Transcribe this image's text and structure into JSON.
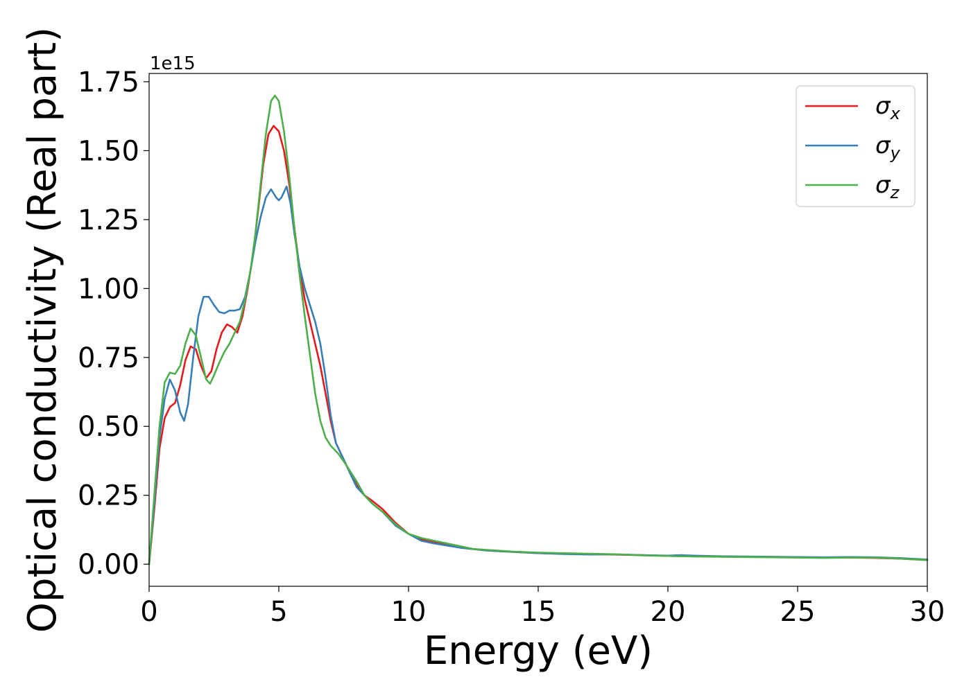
{
  "chart_data": {
    "type": "line",
    "title": "",
    "xlabel": "Energy (eV)",
    "ylabel": "Optical conductivity (Real part)",
    "y_offset_label": "1e15",
    "xlim": [
      0,
      30
    ],
    "ylim": [
      -0.08,
      1.78
    ],
    "xticks": [
      0,
      5,
      10,
      15,
      20,
      25,
      30
    ],
    "xtick_labels": [
      "0",
      "5",
      "10",
      "15",
      "20",
      "25",
      "30"
    ],
    "yticks": [
      0.0,
      0.25,
      0.5,
      0.75,
      1.0,
      1.25,
      1.5,
      1.75
    ],
    "ytick_labels": [
      "0.00",
      "0.25",
      "0.50",
      "0.75",
      "1.00",
      "1.25",
      "1.50",
      "1.75"
    ],
    "grid": false,
    "legend_position": "top-right",
    "series": [
      {
        "name": "σx",
        "symbol": "σ",
        "subscript": "x",
        "color": "#e41a1c",
        "points": [
          [
            0,
            0.0
          ],
          [
            0.2,
            0.2
          ],
          [
            0.4,
            0.42
          ],
          [
            0.6,
            0.53
          ],
          [
            0.8,
            0.57
          ],
          [
            1.0,
            0.585
          ],
          [
            1.2,
            0.65
          ],
          [
            1.4,
            0.74
          ],
          [
            1.6,
            0.79
          ],
          [
            1.8,
            0.78
          ],
          [
            2.0,
            0.72
          ],
          [
            2.2,
            0.675
          ],
          [
            2.4,
            0.7
          ],
          [
            2.6,
            0.78
          ],
          [
            2.8,
            0.84
          ],
          [
            3.0,
            0.87
          ],
          [
            3.2,
            0.86
          ],
          [
            3.4,
            0.84
          ],
          [
            3.6,
            0.9
          ],
          [
            3.8,
            1.0
          ],
          [
            4.0,
            1.12
          ],
          [
            4.2,
            1.28
          ],
          [
            4.4,
            1.45
          ],
          [
            4.6,
            1.56
          ],
          [
            4.8,
            1.59
          ],
          [
            5.0,
            1.57
          ],
          [
            5.2,
            1.5
          ],
          [
            5.4,
            1.38
          ],
          [
            5.6,
            1.22
          ],
          [
            5.8,
            1.07
          ],
          [
            6.0,
            0.96
          ],
          [
            6.2,
            0.88
          ],
          [
            6.4,
            0.8
          ],
          [
            6.6,
            0.72
          ],
          [
            6.8,
            0.62
          ],
          [
            7.0,
            0.52
          ],
          [
            7.2,
            0.44
          ],
          [
            7.5,
            0.38
          ],
          [
            7.8,
            0.32
          ],
          [
            8.0,
            0.29
          ],
          [
            8.3,
            0.25
          ],
          [
            8.6,
            0.23
          ],
          [
            9.0,
            0.2
          ],
          [
            9.5,
            0.15
          ],
          [
            10.0,
            0.11
          ],
          [
            10.5,
            0.09
          ],
          [
            11.0,
            0.08
          ],
          [
            12.0,
            0.06
          ],
          [
            13.0,
            0.05
          ],
          [
            14.0,
            0.045
          ],
          [
            15.0,
            0.04
          ],
          [
            16.0,
            0.038
          ],
          [
            17.0,
            0.036
          ],
          [
            18.0,
            0.035
          ],
          [
            19.0,
            0.033
          ],
          [
            20.0,
            0.03
          ],
          [
            21.0,
            0.029
          ],
          [
            22.0,
            0.028
          ],
          [
            23.0,
            0.027
          ],
          [
            24.0,
            0.026
          ],
          [
            25.0,
            0.025
          ],
          [
            26.0,
            0.024
          ],
          [
            27.0,
            0.024
          ],
          [
            28.0,
            0.023
          ],
          [
            29.0,
            0.02
          ],
          [
            30.0,
            0.015
          ]
        ]
      },
      {
        "name": "σy",
        "symbol": "σ",
        "subscript": "y",
        "color": "#377eb8",
        "points": [
          [
            0,
            0.0
          ],
          [
            0.2,
            0.22
          ],
          [
            0.4,
            0.46
          ],
          [
            0.6,
            0.6
          ],
          [
            0.8,
            0.67
          ],
          [
            1.0,
            0.63
          ],
          [
            1.2,
            0.55
          ],
          [
            1.35,
            0.52
          ],
          [
            1.5,
            0.58
          ],
          [
            1.7,
            0.75
          ],
          [
            1.9,
            0.9
          ],
          [
            2.1,
            0.97
          ],
          [
            2.3,
            0.97
          ],
          [
            2.5,
            0.94
          ],
          [
            2.7,
            0.915
          ],
          [
            2.9,
            0.91
          ],
          [
            3.1,
            0.92
          ],
          [
            3.3,
            0.92
          ],
          [
            3.5,
            0.925
          ],
          [
            3.7,
            0.97
          ],
          [
            3.9,
            1.06
          ],
          [
            4.1,
            1.17
          ],
          [
            4.3,
            1.26
          ],
          [
            4.5,
            1.33
          ],
          [
            4.7,
            1.36
          ],
          [
            4.9,
            1.33
          ],
          [
            5.0,
            1.32
          ],
          [
            5.1,
            1.33
          ],
          [
            5.3,
            1.37
          ],
          [
            5.45,
            1.31
          ],
          [
            5.6,
            1.2
          ],
          [
            5.8,
            1.08
          ],
          [
            6.0,
            1.0
          ],
          [
            6.2,
            0.94
          ],
          [
            6.4,
            0.88
          ],
          [
            6.6,
            0.8
          ],
          [
            6.8,
            0.68
          ],
          [
            7.0,
            0.54
          ],
          [
            7.2,
            0.44
          ],
          [
            7.5,
            0.38
          ],
          [
            7.8,
            0.32
          ],
          [
            8.0,
            0.28
          ],
          [
            8.3,
            0.25
          ],
          [
            8.6,
            0.22
          ],
          [
            9.0,
            0.19
          ],
          [
            9.5,
            0.14
          ],
          [
            10.0,
            0.11
          ],
          [
            10.5,
            0.085
          ],
          [
            11.0,
            0.075
          ],
          [
            12.0,
            0.06
          ],
          [
            13.0,
            0.05
          ],
          [
            14.0,
            0.045
          ],
          [
            15.0,
            0.04
          ],
          [
            16.0,
            0.037
          ],
          [
            17.0,
            0.035
          ],
          [
            18.0,
            0.036
          ],
          [
            19.0,
            0.033
          ],
          [
            20.0,
            0.031
          ],
          [
            20.5,
            0.033
          ],
          [
            21.0,
            0.031
          ],
          [
            22.0,
            0.029
          ],
          [
            23.0,
            0.028
          ],
          [
            24.0,
            0.027
          ],
          [
            25.0,
            0.026
          ],
          [
            26.0,
            0.025
          ],
          [
            27.0,
            0.026
          ],
          [
            28.0,
            0.025
          ],
          [
            29.0,
            0.022
          ],
          [
            30.0,
            0.017
          ]
        ]
      },
      {
        "name": "σz",
        "symbol": "σ",
        "subscript": "z",
        "color": "#4daf4a",
        "points": [
          [
            0,
            0.0
          ],
          [
            0.2,
            0.25
          ],
          [
            0.4,
            0.5
          ],
          [
            0.6,
            0.66
          ],
          [
            0.8,
            0.695
          ],
          [
            1.0,
            0.69
          ],
          [
            1.2,
            0.72
          ],
          [
            1.4,
            0.8
          ],
          [
            1.6,
            0.855
          ],
          [
            1.8,
            0.83
          ],
          [
            2.0,
            0.75
          ],
          [
            2.2,
            0.67
          ],
          [
            2.35,
            0.655
          ],
          [
            2.5,
            0.685
          ],
          [
            2.7,
            0.73
          ],
          [
            2.9,
            0.77
          ],
          [
            3.1,
            0.8
          ],
          [
            3.3,
            0.84
          ],
          [
            3.5,
            0.88
          ],
          [
            3.7,
            0.96
          ],
          [
            3.9,
            1.06
          ],
          [
            4.1,
            1.2
          ],
          [
            4.3,
            1.38
          ],
          [
            4.5,
            1.56
          ],
          [
            4.7,
            1.68
          ],
          [
            4.85,
            1.7
          ],
          [
            5.0,
            1.68
          ],
          [
            5.2,
            1.57
          ],
          [
            5.4,
            1.41
          ],
          [
            5.6,
            1.22
          ],
          [
            5.8,
            1.05
          ],
          [
            6.0,
            0.9
          ],
          [
            6.2,
            0.76
          ],
          [
            6.4,
            0.62
          ],
          [
            6.6,
            0.52
          ],
          [
            6.8,
            0.46
          ],
          [
            7.0,
            0.43
          ],
          [
            7.3,
            0.4
          ],
          [
            7.6,
            0.36
          ],
          [
            8.0,
            0.3
          ],
          [
            8.3,
            0.25
          ],
          [
            8.6,
            0.22
          ],
          [
            9.0,
            0.19
          ],
          [
            9.5,
            0.145
          ],
          [
            10.0,
            0.11
          ],
          [
            10.5,
            0.095
          ],
          [
            11.0,
            0.085
          ],
          [
            12.0,
            0.065
          ],
          [
            12.5,
            0.055
          ],
          [
            13.0,
            0.052
          ],
          [
            14.0,
            0.046
          ],
          [
            15.0,
            0.042
          ],
          [
            16.0,
            0.04
          ],
          [
            17.0,
            0.038
          ],
          [
            18.0,
            0.036
          ],
          [
            19.0,
            0.032
          ],
          [
            20.0,
            0.03
          ],
          [
            21.0,
            0.028
          ],
          [
            22.0,
            0.027
          ],
          [
            23.0,
            0.026
          ],
          [
            24.0,
            0.025
          ],
          [
            25.0,
            0.024
          ],
          [
            26.0,
            0.023
          ],
          [
            27.0,
            0.024
          ],
          [
            28.0,
            0.024
          ],
          [
            29.0,
            0.02
          ],
          [
            30.0,
            0.015
          ]
        ]
      }
    ]
  }
}
